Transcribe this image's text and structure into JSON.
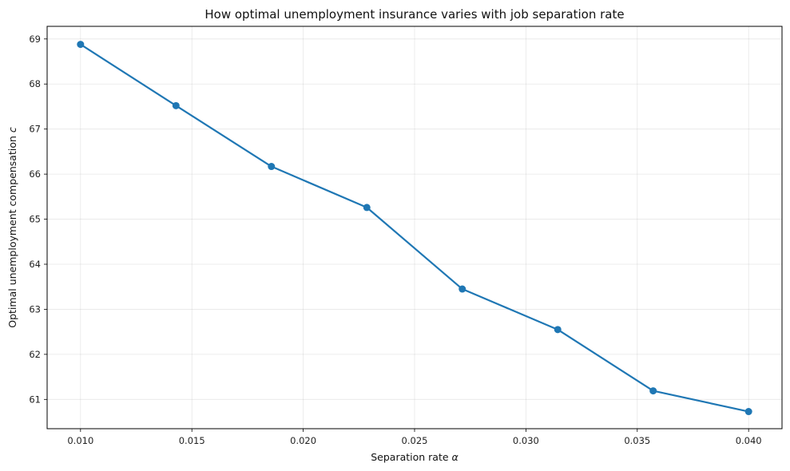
{
  "chart_data": {
    "type": "line",
    "title": "How optimal unemployment insurance varies with job separation rate",
    "xlabel_text": "Separation rate",
    "xlabel_symbol": "α",
    "ylabel_text": "Optimal unemployment compensation",
    "ylabel_symbol": "c",
    "x": [
      0.01,
      0.014286,
      0.018571,
      0.022857,
      0.027143,
      0.031429,
      0.035714,
      0.04
    ],
    "series": [
      {
        "values": [
          68.88,
          67.52,
          66.17,
          65.26,
          63.45,
          62.55,
          61.19,
          60.73
        ]
      }
    ],
    "xlim": [
      0.0085,
      0.0415
    ],
    "ylim": [
      60.35,
      69.28
    ],
    "xticks": [
      "0.010",
      "0.015",
      "0.020",
      "0.025",
      "0.030",
      "0.035",
      "0.040"
    ],
    "yticks": [
      "61",
      "62",
      "63",
      "64",
      "65",
      "66",
      "67",
      "68",
      "69"
    ],
    "grid": true,
    "line_color": "#1f77b4"
  }
}
